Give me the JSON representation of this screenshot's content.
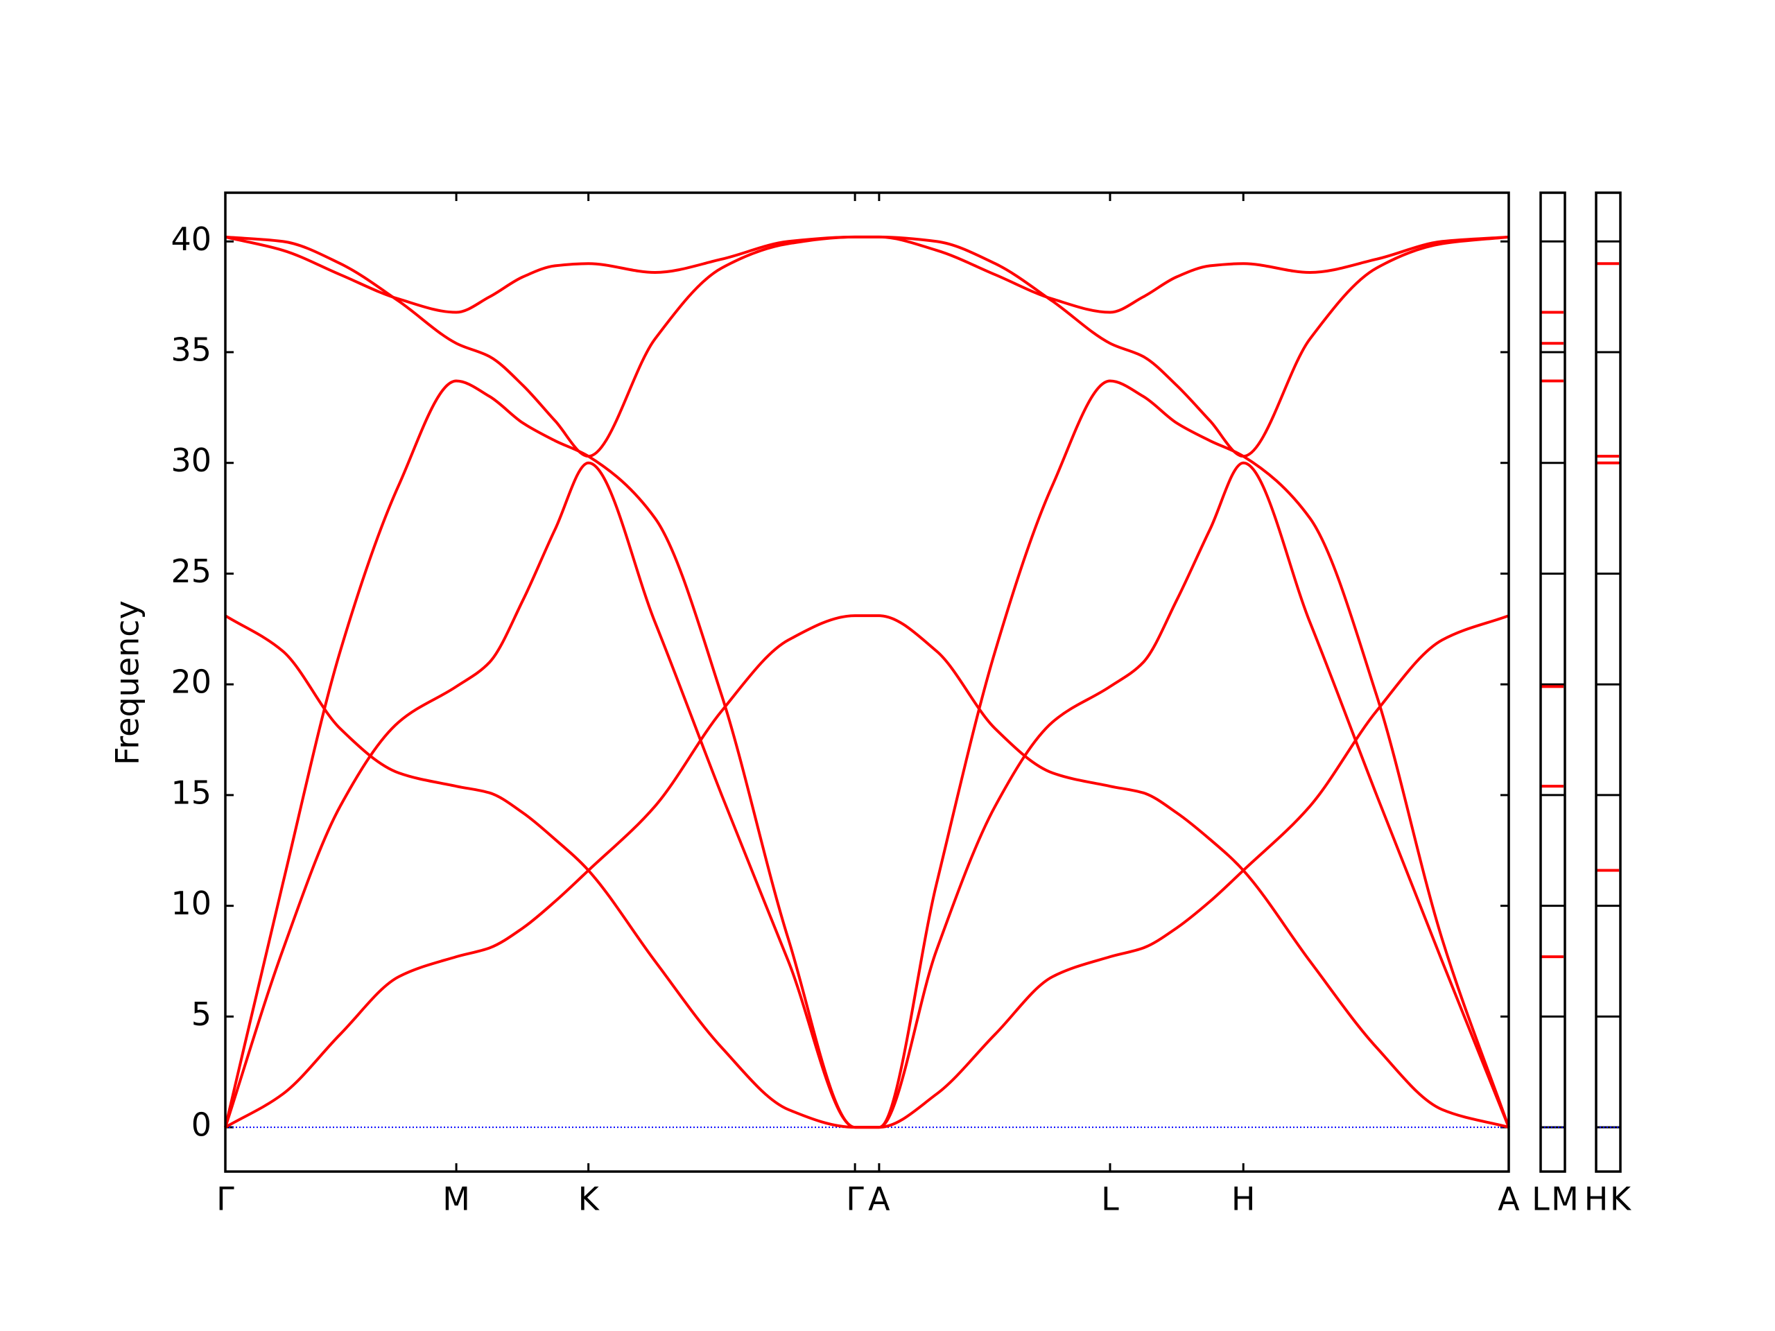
{
  "chart_data": {
    "type": "line",
    "y_label": "Frequency",
    "x": [
      0,
      0.05,
      0.1,
      0.151,
      0.201,
      0.23,
      0.259,
      0.287,
      0.316,
      0.374,
      0.432,
      0.49,
      0.548,
      0.569,
      0.619,
      0.67,
      0.72,
      0.77,
      0.799,
      0.828,
      0.857,
      0.886,
      0.944,
      1.002,
      1.059,
      1.117
    ],
    "series": [
      {
        "color": "#ff0000",
        "values": [
          0,
          1.5,
          4.2,
          6.8,
          7.7,
          8.1,
          9.0,
          10.2,
          11.6,
          14.5,
          18.8,
          22.0,
          23.1,
          23.1,
          21.5,
          18.0,
          16.0,
          15.4,
          15.1,
          14.2,
          13.0,
          11.6,
          7.5,
          3.6,
          0.8,
          0
        ]
      },
      {
        "color": "#ff0000",
        "values": [
          23.1,
          21.5,
          18.0,
          16.0,
          15.4,
          15.1,
          14.2,
          13.0,
          11.6,
          7.5,
          3.6,
          0.8,
          0,
          0,
          1.5,
          4.2,
          6.8,
          7.7,
          8.1,
          9.0,
          10.2,
          11.6,
          14.5,
          18.8,
          22.0,
          23.1
        ]
      },
      {
        "color": "#ff0000",
        "values": [
          0,
          8.0,
          14.5,
          18.3,
          19.9,
          21.0,
          23.8,
          27.0,
          30.0,
          22.8,
          15.0,
          7.5,
          0,
          0,
          8.0,
          14.5,
          18.3,
          19.9,
          21.0,
          23.8,
          27.0,
          30.0,
          22.8,
          15.0,
          7.5,
          0
        ]
      },
      {
        "color": "#ff0000",
        "values": [
          0,
          11.0,
          21.5,
          29.0,
          33.7,
          33.0,
          31.8,
          31.0,
          30.3,
          27.5,
          19.5,
          8.5,
          0,
          0,
          11.0,
          21.5,
          29.0,
          33.7,
          33.0,
          31.8,
          31.0,
          30.3,
          27.5,
          19.5,
          8.5,
          0
        ]
      },
      {
        "color": "#ff0000",
        "values": [
          40.2,
          40.0,
          39.0,
          37.3,
          35.4,
          34.8,
          33.5,
          31.9,
          30.3,
          35.6,
          38.8,
          39.9,
          40.2,
          40.2,
          40.0,
          39.0,
          37.3,
          35.4,
          34.8,
          33.5,
          31.9,
          30.3,
          35.6,
          38.8,
          39.9,
          40.2
        ]
      },
      {
        "color": "#ff0000",
        "values": [
          40.2,
          39.6,
          38.5,
          37.4,
          36.8,
          37.5,
          38.4,
          38.9,
          39.0,
          38.6,
          39.2,
          40.0,
          40.2,
          40.2,
          39.6,
          38.5,
          37.4,
          36.8,
          37.5,
          38.4,
          38.9,
          39.0,
          38.6,
          39.2,
          40.0,
          40.2
        ]
      }
    ],
    "xlim": [
      0,
      1.117
    ],
    "xticks": [
      {
        "value": 0,
        "label": "Γ"
      },
      {
        "value": 0.201,
        "label": "M"
      },
      {
        "value": 0.316,
        "label": "K"
      },
      {
        "value": 0.548,
        "label": "Γ"
      },
      {
        "value": 0.569,
        "label": "A"
      },
      {
        "value": 0.77,
        "label": "L"
      },
      {
        "value": 0.886,
        "label": "H"
      },
      {
        "value": 1.117,
        "label": "A"
      }
    ],
    "ylim": [
      -2,
      42.2
    ],
    "yticks": [
      0,
      5,
      10,
      15,
      20,
      25,
      30,
      35,
      40
    ],
    "zero_line": {
      "value": 0,
      "color": "#0000ff"
    },
    "panels": [
      {
        "labels": [
          "L",
          "M"
        ],
        "color": "#ff0000",
        "values": [
          36.8,
          35.4,
          33.7,
          19.9,
          15.4,
          7.7
        ]
      },
      {
        "labels": [
          "H",
          "K"
        ],
        "color": "#ff0000",
        "values": [
          39.0,
          30.3,
          30.0,
          11.6
        ]
      }
    ]
  }
}
